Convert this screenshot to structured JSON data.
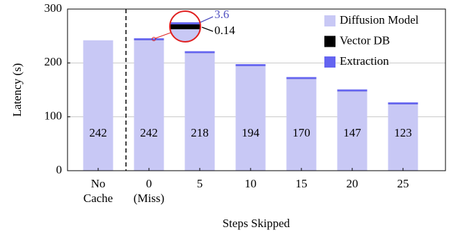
{
  "chart_data": {
    "type": "bar",
    "stacked": true,
    "xlabel": "Steps Skipped",
    "ylabel": "Latency (s)",
    "categories": [
      "No\nCache",
      "0\n(Miss)",
      "5",
      "10",
      "15",
      "20",
      "25"
    ],
    "series": [
      {
        "name": "Diffusion Model",
        "color": "#c8c8f5",
        "values": [
          242,
          242,
          218,
          194,
          170,
          147,
          123
        ]
      },
      {
        "name": "Vector DB",
        "color": "#000000",
        "values": [
          null,
          0.14,
          0.14,
          0.14,
          0.14,
          0.14,
          0.14
        ]
      },
      {
        "name": "Extraction",
        "color": "#6464f0",
        "values": [
          null,
          3.6,
          3.6,
          3.6,
          3.6,
          3.6,
          3.6
        ]
      }
    ],
    "annotations": [
      "3.6",
      "0.14"
    ],
    "ylim": [
      0,
      300
    ],
    "yticks": [
      0,
      100,
      200,
      300
    ],
    "grid": true,
    "legend": "upper right"
  }
}
